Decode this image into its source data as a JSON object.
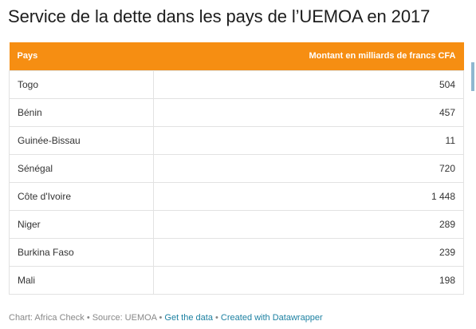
{
  "title": "Service de la dette dans les pays de l’UEMOA en 2017",
  "table": {
    "header_color": "#f68e12",
    "columns": [
      "Pays",
      "Montant en milliards de francs CFA"
    ],
    "rows": [
      {
        "country": "Togo",
        "amount": "504"
      },
      {
        "country": "Bénin",
        "amount": "457"
      },
      {
        "country": "Guinée-Bissau",
        "amount": "11"
      },
      {
        "country": "Sénégal",
        "amount": "720"
      },
      {
        "country": "Côte d'Ivoire",
        "amount": "1 448"
      },
      {
        "country": "Niger",
        "amount": "289"
      },
      {
        "country": "Burkina Faso",
        "amount": "239"
      },
      {
        "country": "Mali",
        "amount": "198"
      }
    ]
  },
  "chart_data": {
    "type": "table",
    "title": "Service de la dette dans les pays de l’UEMOA en 2017",
    "columns": [
      "Pays",
      "Montant en milliards de francs CFA"
    ],
    "categories": [
      "Togo",
      "Bénin",
      "Guinée-Bissau",
      "Sénégal",
      "Côte d'Ivoire",
      "Niger",
      "Burkina Faso",
      "Mali"
    ],
    "values": [
      504,
      457,
      11,
      720,
      1448,
      289,
      239,
      198
    ]
  },
  "footer": {
    "credit": "Chart: Africa Check • Source: UEMOA •",
    "get_data": "Get the data",
    "separator": "•",
    "created_with": "Created with Datawrapper",
    "link_color": "#1d81a2"
  }
}
